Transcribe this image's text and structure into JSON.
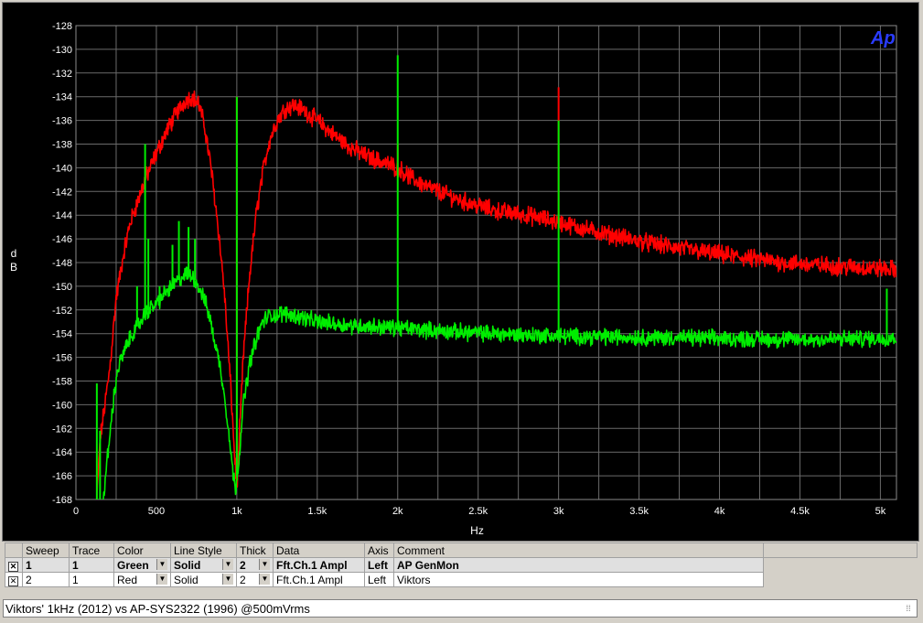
{
  "chart_data": {
    "type": "line",
    "logo": "Ap",
    "xlabel": "Hz",
    "ylabel_lines": [
      "d",
      "B"
    ],
    "xlim": [
      0,
      5100
    ],
    "ylim": [
      -168,
      -128
    ],
    "x_ticks": [
      {
        "value": 0,
        "label": "0"
      },
      {
        "value": 500,
        "label": "500"
      },
      {
        "value": 1000,
        "label": "1k"
      },
      {
        "value": 1500,
        "label": "1.5k"
      },
      {
        "value": 2000,
        "label": "2k"
      },
      {
        "value": 2500,
        "label": "2.5k"
      },
      {
        "value": 3000,
        "label": "3k"
      },
      {
        "value": 3500,
        "label": "3.5k"
      },
      {
        "value": 4000,
        "label": "4k"
      },
      {
        "value": 4500,
        "label": "4.5k"
      },
      {
        "value": 5000,
        "label": "5k"
      }
    ],
    "x_minor_step": 250,
    "y_ticks": [
      -128,
      -130,
      -132,
      -134,
      -136,
      -138,
      -140,
      -142,
      -144,
      -146,
      -148,
      -150,
      -152,
      -154,
      -156,
      -158,
      -160,
      -162,
      -164,
      -166,
      -168
    ],
    "grid": true,
    "series": [
      {
        "color": "#ff0000",
        "noise": 0.6,
        "points": [
          [
            130,
            -168
          ],
          [
            150,
            -163
          ],
          [
            180,
            -160
          ],
          [
            210,
            -157
          ],
          [
            250,
            -151
          ],
          [
            300,
            -147
          ],
          [
            340,
            -144.5
          ],
          [
            380,
            -143
          ],
          [
            430,
            -141
          ],
          [
            500,
            -138.8
          ],
          [
            560,
            -137
          ],
          [
            620,
            -135.5
          ],
          [
            680,
            -134.3
          ],
          [
            720,
            -134
          ],
          [
            760,
            -134.5
          ],
          [
            800,
            -136.5
          ],
          [
            840,
            -140
          ],
          [
            880,
            -144.5
          ],
          [
            920,
            -150
          ],
          [
            960,
            -158
          ],
          [
            985,
            -164
          ],
          [
            1000,
            -167
          ],
          [
            1015,
            -163
          ],
          [
            1040,
            -156
          ],
          [
            1080,
            -149
          ],
          [
            1120,
            -144
          ],
          [
            1160,
            -140.5
          ],
          [
            1200,
            -137.8
          ],
          [
            1250,
            -136
          ],
          [
            1300,
            -135
          ],
          [
            1350,
            -134.7
          ],
          [
            1400,
            -135
          ],
          [
            1500,
            -136
          ],
          [
            1600,
            -137.2
          ],
          [
            1700,
            -138.2
          ],
          [
            1800,
            -139
          ],
          [
            1900,
            -139.5
          ],
          [
            2000,
            -140
          ],
          [
            2100,
            -141
          ],
          [
            2200,
            -141.7
          ],
          [
            2400,
            -142.8
          ],
          [
            2600,
            -143.6
          ],
          [
            2800,
            -144
          ],
          [
            3000,
            -144.6
          ],
          [
            3200,
            -145.3
          ],
          [
            3500,
            -146.2
          ],
          [
            3800,
            -146.9
          ],
          [
            4100,
            -147.5
          ],
          [
            4400,
            -148
          ],
          [
            4700,
            -148.3
          ],
          [
            5000,
            -148.5
          ],
          [
            5100,
            -148.6
          ]
        ],
        "spikes": [
          [
            1000,
            -134
          ],
          [
            2000,
            -138
          ],
          [
            3000,
            -133.2
          ]
        ]
      },
      {
        "color": "#00ee00",
        "noise": 0.55,
        "points": [
          [
            170,
            -168
          ],
          [
            200,
            -164
          ],
          [
            230,
            -160
          ],
          [
            260,
            -157
          ],
          [
            300,
            -155.5
          ],
          [
            350,
            -154
          ],
          [
            400,
            -153
          ],
          [
            450,
            -152
          ],
          [
            500,
            -151.5
          ],
          [
            560,
            -150.5
          ],
          [
            620,
            -149.7
          ],
          [
            680,
            -149
          ],
          [
            730,
            -149.2
          ],
          [
            780,
            -150.5
          ],
          [
            820,
            -152
          ],
          [
            860,
            -154.5
          ],
          [
            900,
            -157
          ],
          [
            940,
            -161
          ],
          [
            970,
            -165
          ],
          [
            990,
            -167.2
          ],
          [
            1010,
            -165
          ],
          [
            1040,
            -160
          ],
          [
            1080,
            -156.5
          ],
          [
            1120,
            -154.5
          ],
          [
            1160,
            -153
          ],
          [
            1200,
            -152.5
          ],
          [
            1300,
            -152.3
          ],
          [
            1400,
            -152.6
          ],
          [
            1500,
            -153
          ],
          [
            1700,
            -153.3
          ],
          [
            2000,
            -153.5
          ],
          [
            2300,
            -153.8
          ],
          [
            2600,
            -154
          ],
          [
            3000,
            -154.2
          ],
          [
            3500,
            -154.3
          ],
          [
            4000,
            -154.4
          ],
          [
            4500,
            -154.5
          ],
          [
            5000,
            -154.4
          ],
          [
            5100,
            -154.3
          ]
        ],
        "spikes": [
          [
            130,
            -158.2
          ],
          [
            150,
            -162.2
          ],
          [
            380,
            -150
          ],
          [
            430,
            -138
          ],
          [
            450,
            -146
          ],
          [
            520,
            -150
          ],
          [
            600,
            -146.5
          ],
          [
            640,
            -144.5
          ],
          [
            700,
            -145
          ],
          [
            740,
            -146
          ],
          [
            1000,
            -134
          ],
          [
            2000,
            -130.5
          ],
          [
            3000,
            -136
          ],
          [
            5040,
            -150.2
          ]
        ]
      }
    ]
  },
  "legend": {
    "headers": [
      "Sweep",
      "Trace",
      "Color",
      "Line Style",
      "Thick",
      "Data",
      "Axis",
      "Comment"
    ],
    "rows": [
      {
        "sweep": "1",
        "trace": "1",
        "color": "Green",
        "style": "Solid",
        "thick": "2",
        "data": "Fft.Ch.1 Ampl",
        "axis": "Left",
        "comment": "AP GenMon"
      },
      {
        "sweep": "2",
        "trace": "1",
        "color": "Red",
        "style": "Solid",
        "thick": "2",
        "data": "Fft.Ch.1 Ampl",
        "axis": "Left",
        "comment": "Viktors"
      }
    ]
  },
  "title_text": "Viktors' 1kHz (2012) vs AP-SYS2322 (1996) @500mVrms"
}
